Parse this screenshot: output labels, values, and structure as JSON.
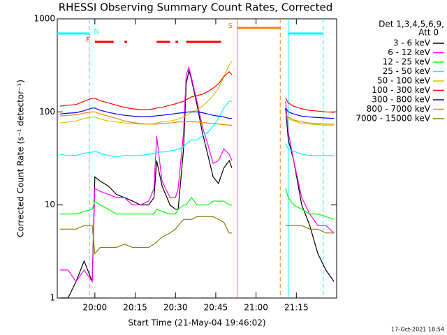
{
  "chart_data": {
    "type": "line",
    "title": "RHESSI Observing Summary Count Rates, Corrected",
    "x_label": "Start Time (21-May-04 19:46:02)",
    "y_label": "Corrected Count Rate (s⁻¹ detector⁻¹)",
    "legend_header": [
      "Det 1,3,4,5,6,9,",
      "Att 0"
    ],
    "footer": "17-Oct-2021 18:54",
    "log_y": true,
    "xlim": [
      "19:46",
      "21:30"
    ],
    "xticks": [
      "20:00",
      "20:15",
      "20:30",
      "20:45",
      "21:00",
      "21:15"
    ],
    "ylim": [
      1,
      1000
    ],
    "yticks": [
      1,
      10,
      100,
      1000
    ],
    "x": [
      "19:47",
      "19:50",
      "19:53",
      "19:56",
      "19:59",
      "20:00",
      "20:02",
      "20:05",
      "20:08",
      "20:11",
      "20:14",
      "20:17",
      "20:20",
      "20:22",
      "20:23",
      "20:25",
      "20:28",
      "20:30",
      "20:31",
      "20:33",
      "20:34",
      "20:35",
      "20:36",
      "20:38",
      "20:40",
      "20:42",
      "20:44",
      "20:46",
      "20:48",
      "20:50",
      "20:51",
      "21:00",
      "21:11",
      "21:12",
      "21:14",
      "21:17",
      "21:20",
      "21:23",
      "21:26",
      "21:29"
    ],
    "series": [
      {
        "name": "3 - 6 keV",
        "color": "#000000",
        "values": [
          1,
          1,
          1.5,
          2.5,
          1.5,
          20,
          18,
          16,
          13,
          12,
          11,
          10,
          10,
          12,
          30,
          16,
          10,
          9,
          9,
          40,
          200,
          280,
          220,
          120,
          60,
          35,
          20,
          17,
          25,
          30,
          25,
          null,
          110,
          50,
          30,
          10,
          6,
          3,
          2,
          1.5
        ]
      },
      {
        "name": "6 - 12 keV",
        "color": "#ff00ff",
        "values": [
          2,
          2,
          1.5,
          2,
          1.5,
          15,
          14,
          13,
          12,
          12,
          10,
          10,
          11,
          15,
          55,
          18,
          12,
          12,
          15,
          60,
          250,
          300,
          230,
          130,
          70,
          45,
          28,
          30,
          40,
          35,
          30,
          null,
          130,
          60,
          30,
          12,
          8,
          6,
          6,
          5
        ]
      },
      {
        "name": "12 - 25 keV",
        "color": "#00ff00",
        "values": [
          8,
          8,
          8,
          8.5,
          9,
          11,
          10,
          9,
          8,
          8,
          8,
          8,
          8,
          8,
          9,
          8.5,
          8,
          8,
          9,
          10,
          10,
          11,
          12,
          10,
          10,
          10,
          11,
          11,
          11,
          10,
          10,
          null,
          15,
          12,
          10,
          9,
          8,
          8,
          7.5,
          7
        ]
      },
      {
        "name": "25 - 50 keV",
        "color": "#00ffff",
        "values": [
          35,
          34,
          34,
          36,
          37,
          38,
          36,
          34,
          33,
          34,
          34,
          34,
          35,
          36,
          37,
          37,
          38,
          39,
          40,
          42,
          45,
          48,
          50,
          50,
          55,
          60,
          70,
          85,
          110,
          130,
          130,
          null,
          45,
          40,
          38,
          35,
          34,
          34,
          34,
          34
        ]
      },
      {
        "name": "50 - 100 keV",
        "color": "#c8c800",
        "values": [
          76,
          78,
          80,
          85,
          88,
          88,
          84,
          80,
          78,
          76,
          75,
          74,
          74,
          75,
          76,
          78,
          80,
          82,
          84,
          88,
          92,
          95,
          100,
          105,
          115,
          130,
          150,
          180,
          240,
          320,
          350,
          null,
          95,
          85,
          80,
          75,
          74,
          73,
          72,
          72
        ]
      },
      {
        "name": "100 - 300 keV",
        "color": "#ff0000",
        "values": [
          115,
          118,
          120,
          130,
          140,
          140,
          132,
          125,
          118,
          112,
          108,
          106,
          106,
          108,
          110,
          112,
          118,
          122,
          125,
          130,
          135,
          140,
          145,
          150,
          155,
          165,
          180,
          200,
          240,
          270,
          250,
          null,
          140,
          125,
          115,
          108,
          104,
          102,
          100,
          99
        ]
      },
      {
        "name": "300 - 800 keV",
        "color": "#0000ff",
        "values": [
          95,
          97,
          98,
          103,
          110,
          110,
          104,
          99,
          95,
          92,
          90,
          89,
          89,
          90,
          91,
          92,
          94,
          96,
          97,
          98,
          99,
          100,
          100,
          100,
          98,
          95,
          92,
          90,
          88,
          85,
          85,
          null,
          110,
          100,
          95,
          90,
          88,
          87,
          86,
          85
        ]
      },
      {
        "name": "800 - 7000 keV",
        "color": "#ff8000",
        "values": [
          90,
          92,
          93,
          97,
          100,
          100,
          95,
          90,
          85,
          80,
          77,
          75,
          74,
          74,
          74,
          75,
          76,
          77,
          78,
          78,
          78,
          79,
          79,
          78,
          77,
          76,
          75,
          74,
          73,
          72,
          72,
          null,
          95,
          88,
          82,
          78,
          76,
          75,
          74,
          74
        ]
      },
      {
        "name": "7000 - 15000 keV",
        "color": "#808000",
        "values": [
          5.5,
          5.5,
          5.5,
          6,
          6,
          3,
          3.5,
          3.5,
          3.5,
          3.8,
          3.5,
          3.5,
          3.5,
          3.8,
          4,
          4.5,
          5,
          5.5,
          6,
          7,
          7,
          7,
          7,
          7.5,
          7.5,
          7.5,
          7.5,
          7,
          6.5,
          5,
          5,
          null,
          6,
          6,
          6,
          6,
          5.5,
          5.5,
          5,
          5
        ]
      }
    ],
    "flags": [
      {
        "label": "F",
        "color": "#ff0000",
        "boundary_lines": false,
        "intervals": [
          [
            "20:00",
            "20:07"
          ],
          [
            "20:11",
            "20:12"
          ],
          [
            "20:23",
            "20:28"
          ],
          [
            "20:30",
            "20:31"
          ],
          [
            "20:34",
            "20:47"
          ]
        ]
      },
      {
        "label": "N",
        "color": "#00ffff",
        "boundary_lines": true,
        "intervals": [
          [
            "19:46",
            "19:58"
          ],
          [
            "21:12",
            "21:25"
          ]
        ]
      },
      {
        "label": "S",
        "color": "#ff8000",
        "boundary_lines": true,
        "intervals": [
          [
            "20:53",
            "21:09"
          ]
        ]
      }
    ]
  }
}
